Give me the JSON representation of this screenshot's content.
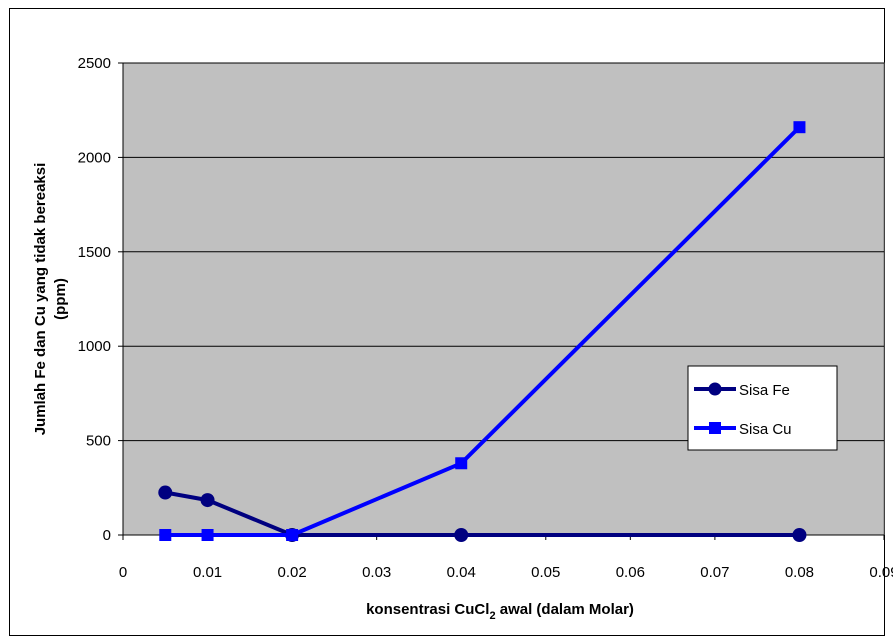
{
  "chart_data": {
    "type": "line",
    "xlabel_main": "konsentrasi CuCl",
    "xlabel_sub": "2",
    "xlabel_rest": " awal (dalam Molar)",
    "ylabel_line1": "Jumlah Fe dan  Cu yang tidak bereaksi",
    "ylabel_line2": "(ppm)",
    "xlim": [
      0,
      0.09
    ],
    "ylim": [
      0,
      2500
    ],
    "x_ticks": [
      "0",
      "0.01",
      "0.02",
      "0.03",
      "0.04",
      "0.05",
      "0.06",
      "0.07",
      "0.08",
      "0.09"
    ],
    "x_tick_values": [
      0,
      0.01,
      0.02,
      0.03,
      0.04,
      0.05,
      0.06,
      0.07,
      0.08,
      0.09
    ],
    "y_ticks": [
      "0",
      "500",
      "1000",
      "1500",
      "2000",
      "2500"
    ],
    "y_tick_values": [
      0,
      500,
      1000,
      1500,
      2000,
      2500
    ],
    "grid": "horizontal",
    "plot_background": "#c0c0c0",
    "legend_position": "right",
    "series": [
      {
        "name": "Sisa Fe",
        "color": "#000080",
        "marker": "circle",
        "x": [
          0.005,
          0.01,
          0.02,
          0.04,
          0.08
        ],
        "y": [
          225,
          185,
          0,
          0,
          0
        ]
      },
      {
        "name": "Sisa Cu",
        "color": "#0000ff",
        "marker": "square",
        "x": [
          0.005,
          0.01,
          0.02,
          0.04,
          0.08
        ],
        "y": [
          0,
          0,
          0,
          380,
          2160
        ]
      }
    ]
  }
}
